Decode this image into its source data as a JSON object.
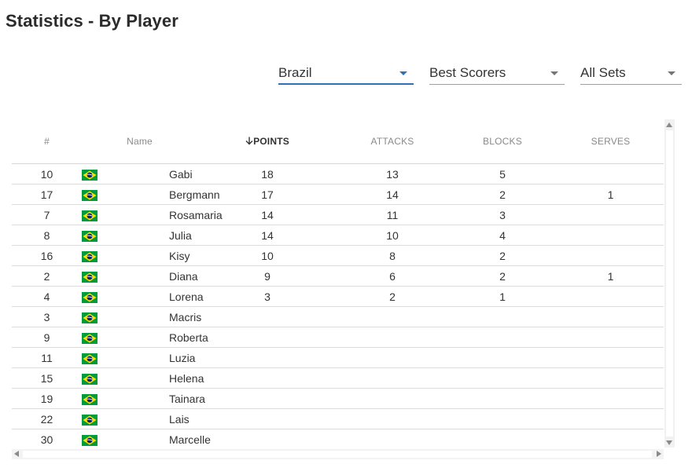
{
  "page": {
    "title": "Statistics - By Player"
  },
  "filters": {
    "team": {
      "value": "Brazil"
    },
    "category": {
      "value": "Best Scorers"
    },
    "sets": {
      "value": "All Sets"
    }
  },
  "colors": {
    "accent": "#2a73b8",
    "flag_green": "#009c3b",
    "flag_yellow": "#ffdf00",
    "flag_blue": "#002776"
  },
  "table": {
    "headers": {
      "number": "#",
      "name": "Name",
      "points": "POINTS",
      "attacks": "ATTACKS",
      "blocks": "BLOCKS",
      "serves": "SERVES"
    },
    "sort_icon": "arrow-down-icon",
    "rows": [
      {
        "number": "10",
        "name": "Gabi",
        "points": "18",
        "attacks": "13",
        "blocks": "5",
        "serves": ""
      },
      {
        "number": "17",
        "name": "Bergmann",
        "points": "17",
        "attacks": "14",
        "blocks": "2",
        "serves": "1"
      },
      {
        "number": "7",
        "name": "Rosamaria",
        "points": "14",
        "attacks": "11",
        "blocks": "3",
        "serves": ""
      },
      {
        "number": "8",
        "name": "Julia",
        "points": "14",
        "attacks": "10",
        "blocks": "4",
        "serves": ""
      },
      {
        "number": "16",
        "name": "Kisy",
        "points": "10",
        "attacks": "8",
        "blocks": "2",
        "serves": ""
      },
      {
        "number": "2",
        "name": "Diana",
        "points": "9",
        "attacks": "6",
        "blocks": "2",
        "serves": "1"
      },
      {
        "number": "4",
        "name": "Lorena",
        "points": "3",
        "attacks": "2",
        "blocks": "1",
        "serves": ""
      },
      {
        "number": "3",
        "name": "Macris",
        "points": "",
        "attacks": "",
        "blocks": "",
        "serves": ""
      },
      {
        "number": "9",
        "name": "Roberta",
        "points": "",
        "attacks": "",
        "blocks": "",
        "serves": ""
      },
      {
        "number": "11",
        "name": "Luzia",
        "points": "",
        "attacks": "",
        "blocks": "",
        "serves": ""
      },
      {
        "number": "15",
        "name": "Helena",
        "points": "",
        "attacks": "",
        "blocks": "",
        "serves": ""
      },
      {
        "number": "19",
        "name": "Tainara",
        "points": "",
        "attacks": "",
        "blocks": "",
        "serves": ""
      },
      {
        "number": "22",
        "name": "Lais",
        "points": "",
        "attacks": "",
        "blocks": "",
        "serves": ""
      },
      {
        "number": "30",
        "name": "Marcelle",
        "points": "",
        "attacks": "",
        "blocks": "",
        "serves": ""
      }
    ]
  }
}
